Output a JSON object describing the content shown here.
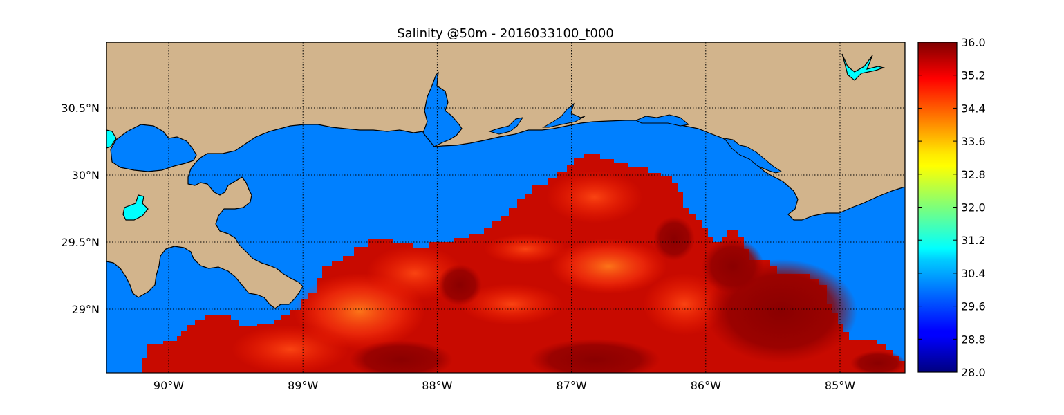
{
  "title": "Salinity @50m - 2016033100_t000",
  "lon_ticks": [
    {
      "value": -90,
      "label": "90°W"
    },
    {
      "value": -89,
      "label": "89°W"
    },
    {
      "value": -88,
      "label": "88°W"
    },
    {
      "value": -87,
      "label": "87°W"
    },
    {
      "value": -86,
      "label": "86°W"
    },
    {
      "value": -85,
      "label": "85°W"
    }
  ],
  "lat_ticks": [
    {
      "value": 30.5,
      "label": "30.5°N"
    },
    {
      "value": 30.0,
      "label": "30°N"
    },
    {
      "value": 29.5,
      "label": "29.5°N"
    },
    {
      "value": 29.0,
      "label": "29°N"
    }
  ],
  "colorbar": {
    "min": 28.0,
    "max": 36.0,
    "colormap": "jet",
    "tick_labels": [
      "36.0",
      "35.2",
      "34.4",
      "33.6",
      "32.8",
      "32.0",
      "31.2",
      "30.4",
      "29.6",
      "28.8",
      "28.0"
    ]
  },
  "colors": {
    "land": "#d2b48c",
    "water": "#0080ff",
    "lake": "#00ffff",
    "coastline": "#000000"
  },
  "grid": "dotted"
}
